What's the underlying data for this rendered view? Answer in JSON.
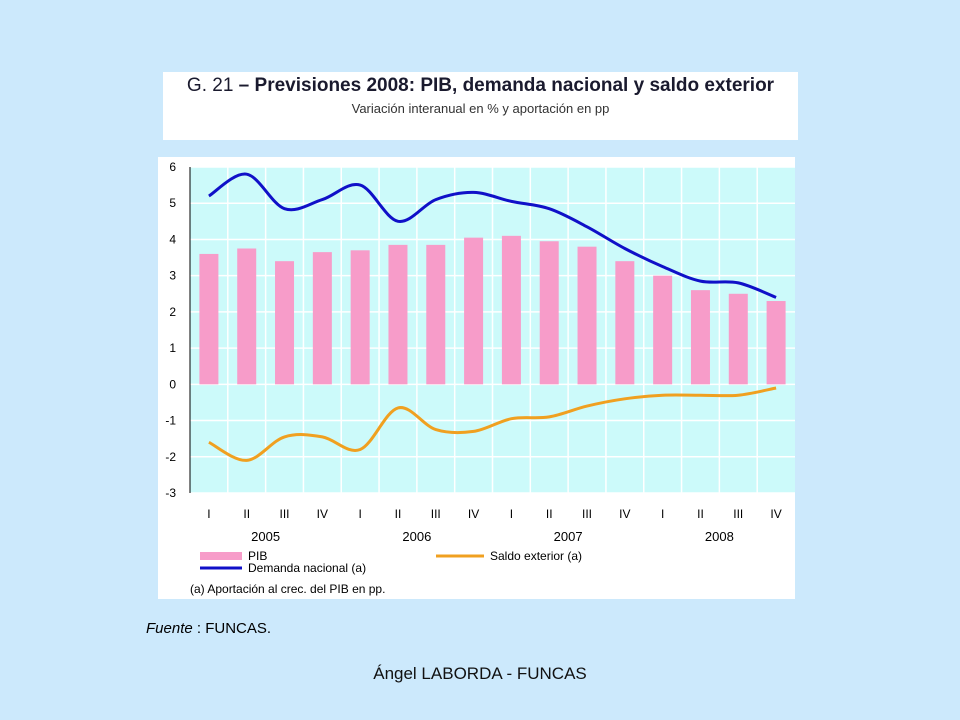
{
  "title": {
    "prefix": "G. 21 ",
    "main": "– Previsiones 2008: PIB, demanda nacional y saldo exterior",
    "subtitle": "Variación interanual en % y aportación en pp"
  },
  "source": {
    "label": "Fuente",
    "sep": " : ",
    "value": "FUNCAS."
  },
  "footer": "Ángel LABORDA - FUNCAS",
  "colors": {
    "pib": "#f79cc9",
    "demanda": "#1010c8",
    "saldo": "#f0a020",
    "plot_bg": "#ccfafa",
    "grid": "#ffffff"
  },
  "chart_data": {
    "type": "bar+line",
    "title": "G. 21 – Previsiones 2008: PIB, demanda nacional y saldo exterior",
    "subtitle": "Variación interanual en % y aportación en pp",
    "quarters": [
      "I",
      "II",
      "III",
      "IV",
      "I",
      "II",
      "III",
      "IV",
      "I",
      "II",
      "III",
      "IV",
      "I",
      "II",
      "III",
      "IV"
    ],
    "years": [
      {
        "label": "2005",
        "start": 0,
        "end": 3
      },
      {
        "label": "2006",
        "start": 4,
        "end": 7
      },
      {
        "label": "2007",
        "start": 8,
        "end": 11
      },
      {
        "label": "2008",
        "start": 12,
        "end": 15
      }
    ],
    "ylim": [
      -3,
      6
    ],
    "yticks": [
      "6",
      "5",
      "4",
      "3",
      "2",
      "1",
      "0",
      "-1",
      "-2",
      "-3"
    ],
    "series": [
      {
        "name": "PIB",
        "kind": "bar",
        "color": "#f79cc9",
        "values": [
          3.6,
          3.75,
          3.4,
          3.65,
          3.7,
          3.85,
          3.85,
          4.05,
          4.1,
          3.95,
          3.8,
          3.4,
          3.0,
          2.6,
          2.5,
          2.3
        ]
      },
      {
        "name": "Demanda nacional (a)",
        "kind": "line",
        "color": "#1010c8",
        "values": [
          5.2,
          5.8,
          4.85,
          5.1,
          5.5,
          4.5,
          5.1,
          5.3,
          5.05,
          4.85,
          4.35,
          3.75,
          3.25,
          2.85,
          2.8,
          2.4
        ]
      },
      {
        "name": "Saldo exterior (a)",
        "kind": "line",
        "color": "#f0a020",
        "values": [
          -1.6,
          -2.1,
          -1.45,
          -1.45,
          -1.8,
          -0.65,
          -1.25,
          -1.3,
          -0.95,
          -0.9,
          -0.6,
          -0.4,
          -0.3,
          -0.3,
          -0.3,
          -0.1
        ]
      }
    ],
    "legend": {
      "placement": "bottom",
      "items": [
        "PIB",
        "Demanda nacional (a)",
        "Saldo exterior (a)"
      ],
      "note": "(a) Aportación al crec. del PIB en pp."
    },
    "grid": true
  }
}
